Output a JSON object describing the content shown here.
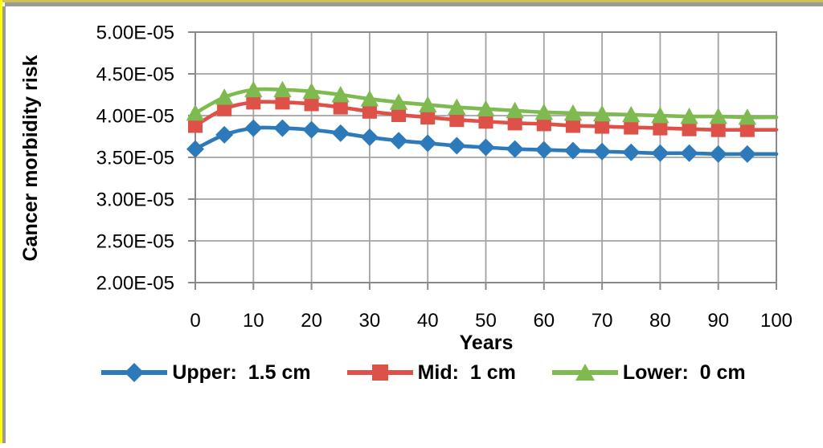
{
  "frame": {
    "top_accent_color": "#CDC253",
    "left_accent_color": "#FFFF00",
    "gray_color": "#9B9B9B"
  },
  "chart_data": {
    "type": "line",
    "title": "",
    "xlabel": "Years",
    "ylabel": "Cancer morbidity risk",
    "xlim": [
      0,
      100
    ],
    "ylim": [
      2e-05,
      5e-05
    ],
    "grid": true,
    "grid_color": "#A3A3A3",
    "axis_color": "#8A8A8A",
    "text_color": "#000000",
    "legend_position": "bottom",
    "x_ticks": [
      0,
      10,
      20,
      30,
      40,
      50,
      60,
      70,
      80,
      90,
      100
    ],
    "x_tick_labels": [
      "0",
      "10",
      "20",
      "30",
      "40",
      "50",
      "60",
      "70",
      "80",
      "90",
      "100"
    ],
    "y_tick_labels": [
      "5.00E-05",
      "4.50E-05",
      "4.00E-05",
      "3.50E-05",
      "3.00E-05",
      "2.50E-05",
      "2.00E-05"
    ],
    "x": [
      0,
      5,
      10,
      15,
      20,
      25,
      30,
      35,
      40,
      45,
      50,
      55,
      60,
      65,
      70,
      75,
      80,
      85,
      90,
      95,
      100
    ],
    "last_point_marker": false,
    "smooth_lines": true,
    "series": [
      {
        "name": "Upper:  1.5 cm",
        "marker": "diamond",
        "color": "#2D7ABB",
        "values": [
          3.6e-05,
          3.77e-05,
          3.85e-05,
          3.85e-05,
          3.83e-05,
          3.79e-05,
          3.74e-05,
          3.7e-05,
          3.67e-05,
          3.64e-05,
          3.62e-05,
          3.6e-05,
          3.59e-05,
          3.58e-05,
          3.57e-05,
          3.56e-05,
          3.55e-05,
          3.55e-05,
          3.54e-05,
          3.54e-05,
          3.54e-05
        ]
      },
      {
        "name": "Mid:  1 cm",
        "marker": "square",
        "color": "#DE5149",
        "values": [
          3.88e-05,
          4.08e-05,
          4.16e-05,
          4.16e-05,
          4.14e-05,
          4.1e-05,
          4.05e-05,
          4.01e-05,
          3.98e-05,
          3.95e-05,
          3.93e-05,
          3.91e-05,
          3.9e-05,
          3.88e-05,
          3.87e-05,
          3.86e-05,
          3.85e-05,
          3.84e-05,
          3.83e-05,
          3.83e-05,
          3.83e-05
        ]
      },
      {
        "name": "Lower:  0 cm",
        "marker": "triangle",
        "color": "#7FBA50",
        "values": [
          4.03e-05,
          4.22e-05,
          4.31e-05,
          4.31e-05,
          4.29e-05,
          4.25e-05,
          4.2e-05,
          4.16e-05,
          4.13e-05,
          4.1e-05,
          4.08e-05,
          4.06e-05,
          4.04e-05,
          4.03e-05,
          4.02e-05,
          4.01e-05,
          4e-05,
          3.99e-05,
          3.99e-05,
          3.98e-05,
          3.98e-05
        ]
      }
    ]
  }
}
